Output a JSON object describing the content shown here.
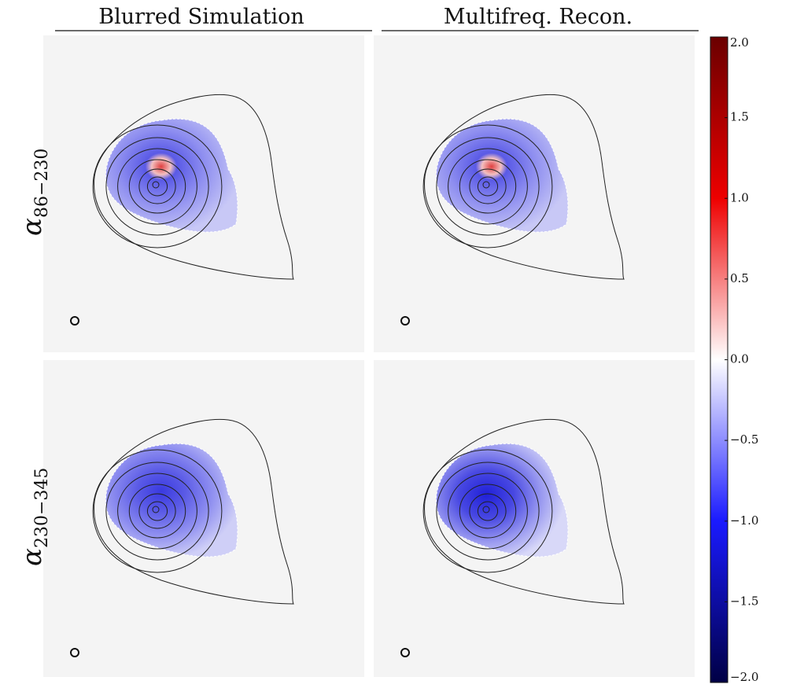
{
  "columns": [
    "Blurred Simulation",
    "Multifreq. Recon."
  ],
  "rows": [
    {
      "symbol": "α",
      "subscript": "86−230"
    },
    {
      "symbol": "α",
      "subscript": "230−345"
    }
  ],
  "colorbar": {
    "lim": [
      -2,
      2
    ],
    "ticks": [
      {
        "value": 2,
        "label": "2.0"
      },
      {
        "value": 1.5,
        "label": "1.5"
      },
      {
        "value": 1,
        "label": "1.0"
      },
      {
        "value": 0.5,
        "label": "0.5"
      },
      {
        "value": 0,
        "label": "0.0"
      },
      {
        "value": -0.5,
        "label": "−0.5"
      },
      {
        "value": -1,
        "label": "−1.0"
      },
      {
        "value": -1.5,
        "label": "−1.5"
      },
      {
        "value": -2,
        "label": "−2.0"
      }
    ]
  }
}
